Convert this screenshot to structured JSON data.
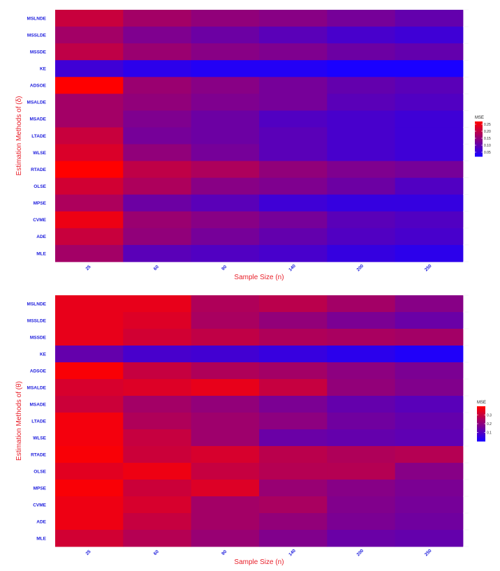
{
  "colors": {
    "low": "#1a00ff",
    "high": "#ff0000",
    "label": "#1a1adc",
    "title": "#e8202a"
  },
  "chart_data": [
    {
      "type": "heatmap",
      "xlabel": "Sample Size (n)",
      "ylabel": "Estimation Methods of (δ)",
      "x": [
        "25",
        "60",
        "90",
        "140",
        "200",
        "250"
      ],
      "y": [
        "MSLNDE",
        "MSSLDE",
        "MSSDE",
        "KE",
        "ADSOE",
        "MSALDE",
        "MSADE",
        "LTADE",
        "WLSE",
        "RTADE",
        "OLSE",
        "MPSE",
        "CVME",
        "ADE",
        "MLE"
      ],
      "legend": {
        "title": "MSE",
        "min": 0.02,
        "max": 0.27,
        "ticks": [
          0.05,
          0.1,
          0.15,
          0.2,
          0.25
        ],
        "tick_labels": [
          "0.05",
          "0.10",
          "0.15",
          "0.20",
          "0.25"
        ],
        "placement": "right"
      },
      "values": [
        [
          0.21,
          0.17,
          0.15,
          0.14,
          0.12,
          0.1
        ],
        [
          0.17,
          0.13,
          0.11,
          0.09,
          0.07,
          0.06
        ],
        [
          0.2,
          0.16,
          0.14,
          0.13,
          0.11,
          0.1
        ],
        [
          0.06,
          0.04,
          0.03,
          0.03,
          0.02,
          0.01
        ],
        [
          0.27,
          0.16,
          0.14,
          0.12,
          0.1,
          0.09
        ],
        [
          0.17,
          0.15,
          0.13,
          0.12,
          0.09,
          0.08
        ],
        [
          0.17,
          0.13,
          0.11,
          0.08,
          0.07,
          0.06
        ],
        [
          0.21,
          0.12,
          0.11,
          0.09,
          0.07,
          0.06
        ],
        [
          0.23,
          0.15,
          0.12,
          0.09,
          0.07,
          0.06
        ],
        [
          0.28,
          0.2,
          0.18,
          0.15,
          0.13,
          0.12
        ],
        [
          0.22,
          0.18,
          0.14,
          0.13,
          0.11,
          0.08
        ],
        [
          0.18,
          0.11,
          0.09,
          0.06,
          0.05,
          0.05
        ],
        [
          0.25,
          0.16,
          0.14,
          0.12,
          0.09,
          0.08
        ],
        [
          0.21,
          0.15,
          0.12,
          0.1,
          0.08,
          0.07
        ],
        [
          0.17,
          0.09,
          0.08,
          0.07,
          0.05,
          0.04
        ]
      ]
    },
    {
      "type": "heatmap",
      "xlabel": "Sample Size (n)",
      "ylabel": "Estimation Methods of (θ)",
      "x": [
        "25",
        "60",
        "90",
        "140",
        "200",
        "250"
      ],
      "y": [
        "MSLNDE",
        "MSSLDE",
        "MSSDE",
        "KE",
        "ADSOE",
        "MSALDE",
        "MSADE",
        "LTADE",
        "WLSE",
        "RTADE",
        "OLSE",
        "MPSE",
        "CVME",
        "ADE",
        "MLE"
      ],
      "legend": {
        "title": "MSE",
        "min": 0.0,
        "max": 0.4,
        "ticks": [
          0.1,
          0.2,
          0.3
        ],
        "tick_labels": [
          "0.1",
          "0.2",
          "0.3"
        ],
        "placement": "right"
      },
      "values": [
        [
          0.36,
          0.36,
          0.26,
          0.28,
          0.24,
          0.19
        ],
        [
          0.36,
          0.34,
          0.25,
          0.21,
          0.17,
          0.14
        ],
        [
          0.36,
          0.32,
          0.29,
          0.26,
          0.25,
          0.24
        ],
        [
          0.13,
          0.08,
          0.07,
          0.05,
          0.03,
          0.01
        ],
        [
          0.39,
          0.3,
          0.26,
          0.24,
          0.2,
          0.17
        ],
        [
          0.33,
          0.34,
          0.36,
          0.3,
          0.21,
          0.18
        ],
        [
          0.31,
          0.24,
          0.21,
          0.17,
          0.13,
          0.11
        ],
        [
          0.38,
          0.26,
          0.23,
          0.2,
          0.15,
          0.13
        ],
        [
          0.38,
          0.3,
          0.23,
          0.14,
          0.13,
          0.12
        ],
        [
          0.39,
          0.31,
          0.33,
          0.28,
          0.26,
          0.27
        ],
        [
          0.35,
          0.37,
          0.3,
          0.27,
          0.27,
          0.19
        ],
        [
          0.39,
          0.31,
          0.34,
          0.22,
          0.19,
          0.17
        ],
        [
          0.37,
          0.33,
          0.24,
          0.25,
          0.18,
          0.16
        ],
        [
          0.37,
          0.3,
          0.24,
          0.21,
          0.17,
          0.15
        ],
        [
          0.32,
          0.27,
          0.22,
          0.18,
          0.14,
          0.13
        ]
      ]
    }
  ]
}
